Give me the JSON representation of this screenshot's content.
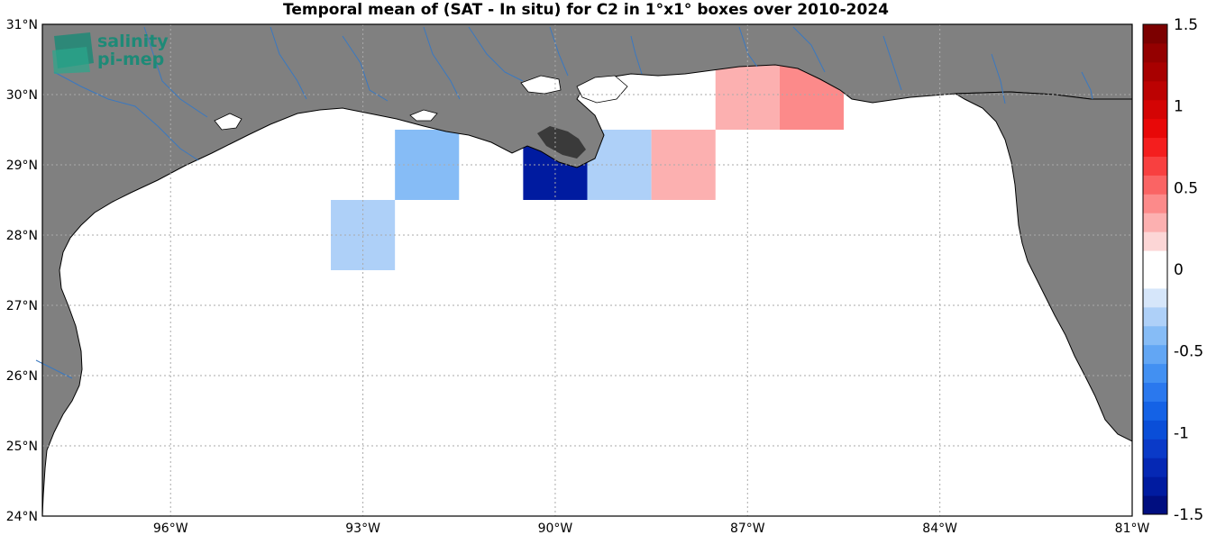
{
  "title": "Temporal mean of (SAT - In situ) for C2 in 1°x1° boxes over 2010-2024",
  "logo": {
    "line1": "salinity",
    "line2": "pi-mep"
  },
  "map": {
    "lon_range": [
      -98,
      -81
    ],
    "lat_range": [
      24,
      31
    ],
    "land_color": "#808080",
    "water_color": "#ffffff",
    "river_color": "#3a78c0",
    "lon_ticks": [
      {
        "lon": -96,
        "label": "96°W"
      },
      {
        "lon": -93,
        "label": "93°W"
      },
      {
        "lon": -90,
        "label": "90°W"
      },
      {
        "lon": -87,
        "label": "87°W"
      },
      {
        "lon": -84,
        "label": "84°W"
      },
      {
        "lon": -81,
        "label": "81°W"
      }
    ],
    "lat_ticks": [
      {
        "lat": 24,
        "label": "24°N"
      },
      {
        "lat": 25,
        "label": "25°N"
      },
      {
        "lat": 26,
        "label": "26°N"
      },
      {
        "lat": 27,
        "label": "27°N"
      },
      {
        "lat": 28,
        "label": "28°N"
      },
      {
        "lat": 29,
        "label": "29°N"
      },
      {
        "lat": 30,
        "label": "30°N"
      },
      {
        "lat": 31,
        "label": "31°N"
      }
    ]
  },
  "chart_data": {
    "type": "heatmap",
    "title": "Temporal mean of (SAT - In situ) for C2 in 1°x1° boxes over 2010-2024",
    "cell_size_deg": 1,
    "cells": [
      {
        "lon_center": -94,
        "lat_center": 29,
        "value": -0.1
      },
      {
        "lon_center": -92,
        "lat_center": 29,
        "value": -0.45
      },
      {
        "lon_center": -90,
        "lat_center": 29,
        "value": -1.35
      },
      {
        "lon_center": -89,
        "lat_center": 29,
        "value": -0.25
      },
      {
        "lon_center": -88,
        "lat_center": 29,
        "value": 0.3
      },
      {
        "lon_center": -88,
        "lat_center": 30,
        "value": 0.1
      },
      {
        "lon_center": -87,
        "lat_center": 30,
        "value": 0.3
      },
      {
        "lon_center": -86,
        "lat_center": 30,
        "value": 0.45
      },
      {
        "lon_center": -94,
        "lat_center": 28,
        "value": -0.1
      },
      {
        "lon_center": -93,
        "lat_center": 28,
        "value": -0.25
      },
      {
        "lon_center": -91,
        "lat_center": 28,
        "value": -0.1
      },
      {
        "lon_center": -85,
        "lat_center": 28,
        "value": 0.1
      },
      {
        "lon_center": -96,
        "lat_center": 26,
        "value": -0.1
      },
      {
        "lon_center": -96,
        "lat_center": 25,
        "value": 0.1
      }
    ],
    "colorbar": {
      "range": [
        -1.5,
        1.5
      ],
      "ticks": [
        {
          "value": 1.5,
          "label": "1.5"
        },
        {
          "value": 1,
          "label": "1"
        },
        {
          "value": 0.5,
          "label": "0.5"
        },
        {
          "value": 0,
          "label": "0"
        },
        {
          "value": -0.5,
          "label": "-0.5"
        },
        {
          "value": -1,
          "label": "-1"
        },
        {
          "value": -1.5,
          "label": "-1.5"
        }
      ],
      "colors_bottom_to_top": [
        "#000e80",
        "#001ba0",
        "#0528b4",
        "#0a3ac8",
        "#0a4ed8",
        "#1462e6",
        "#2a78ee",
        "#4290f2",
        "#62a6f4",
        "#86bcf6",
        "#aed0f8",
        "#d6e6fa",
        "#ffffff",
        "#ffffff",
        "#fcd6d6",
        "#fcb0b0",
        "#fc8a8a",
        "#fa6464",
        "#f84040",
        "#f41e1e",
        "#e80808",
        "#d40404",
        "#bc0202",
        "#a80000",
        "#940000",
        "#7c0000"
      ]
    }
  }
}
